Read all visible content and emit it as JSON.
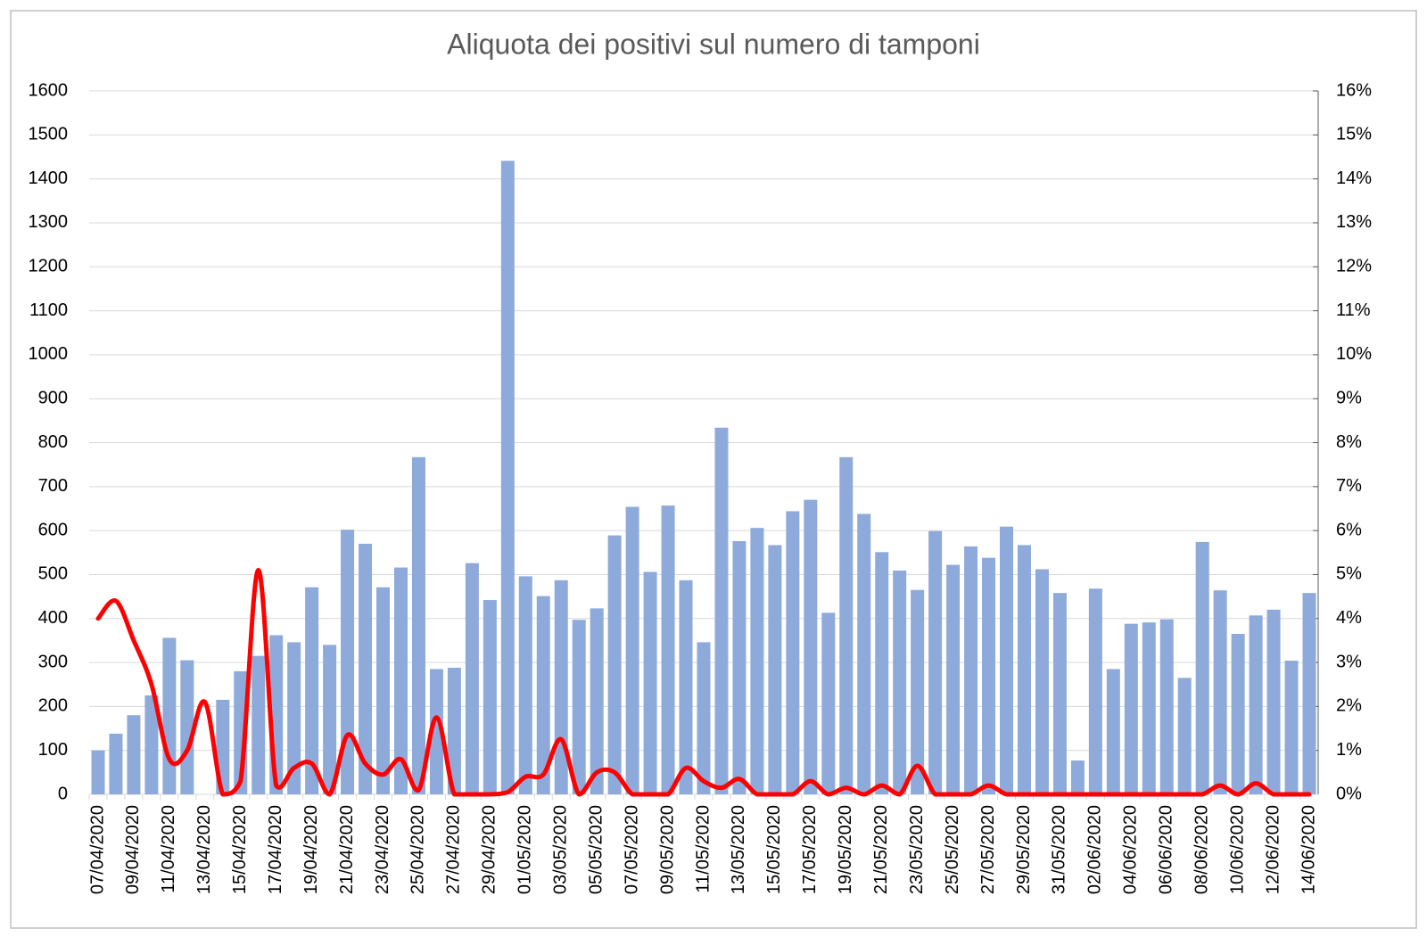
{
  "chart_data": {
    "type": "bar",
    "title": "Aliquota dei positivi sul numero di tamponi",
    "categories": [
      "07/04/2020",
      null,
      "09/04/2020",
      null,
      "11/04/2020",
      null,
      "13/04/2020",
      null,
      "15/04/2020",
      null,
      "17/04/2020",
      null,
      "19/04/2020",
      null,
      "21/04/2020",
      null,
      "23/04/2020",
      null,
      "25/04/2020",
      null,
      "27/04/2020",
      null,
      "29/04/2020",
      null,
      "01/05/2020",
      null,
      "03/05/2020",
      null,
      "05/05/2020",
      null,
      "07/05/2020",
      null,
      "09/05/2020",
      null,
      "11/05/2020",
      null,
      "13/05/2020",
      null,
      "15/05/2020",
      null,
      "17/05/2020",
      null,
      "19/05/2020",
      null,
      "21/05/2020",
      null,
      "23/05/2020",
      null,
      "25/05/2020",
      null,
      "27/05/2020",
      null,
      "29/05/2020",
      null,
      "31/05/2020",
      null,
      "02/06/2020",
      null,
      "04/06/2020",
      null,
      "06/06/2020",
      null,
      "08/06/2020",
      null,
      "10/06/2020",
      null,
      "12/06/2020",
      null,
      "14/06/2020"
    ],
    "series": [
      {
        "type": "bar",
        "color": "#8eaadb",
        "values": [
          100,
          138,
          180,
          225,
          356,
          305,
          null,
          215,
          280,
          315,
          362,
          346,
          471,
          340,
          602,
          570,
          471,
          516,
          767,
          285,
          288,
          526,
          442,
          1441,
          496,
          451,
          487,
          397,
          423,
          589,
          654,
          506,
          657,
          487,
          346,
          834,
          576,
          606,
          567,
          644,
          670,
          413,
          767,
          638,
          551,
          509,
          465,
          599,
          522,
          564,
          538,
          609,
          567,
          512,
          458,
          77,
          468,
          285,
          388,
          391,
          398,
          265,
          574,
          464,
          365,
          407,
          420,
          304,
          458
        ]
      },
      {
        "type": "line",
        "axis": "y2",
        "color": "#ff0000",
        "values": [
          4.0,
          4.4,
          3.5,
          2.5,
          0.8,
          1.0,
          2.1,
          0,
          0.3,
          5.1,
          0.2,
          0.6,
          0.7,
          0,
          1.35,
          0.7,
          0.45,
          0.8,
          0.1,
          1.75,
          0,
          0,
          0,
          0.05,
          0.4,
          0.45,
          1.25,
          0,
          0.5,
          0.5,
          0,
          0,
          0,
          0.6,
          0.3,
          0.15,
          0.35,
          0,
          0,
          0,
          0.3,
          0,
          0.15,
          0,
          0.2,
          0,
          0.65,
          0,
          0,
          0,
          0.2,
          0,
          0,
          0,
          0,
          0,
          0,
          0,
          0,
          0,
          0,
          0,
          0,
          0.2,
          0,
          0.25,
          0,
          0,
          0
        ]
      }
    ],
    "ylim": [
      0,
      1600
    ],
    "yticks": [
      0,
      100,
      200,
      300,
      400,
      500,
      600,
      700,
      800,
      900,
      1000,
      1100,
      1200,
      1300,
      1400,
      1500,
      1600
    ],
    "y2lim": [
      0,
      16
    ],
    "y2ticks": [
      {
        "value": 0,
        "label": "0%"
      },
      {
        "value": 1,
        "label": "1%"
      },
      {
        "value": 2,
        "label": "2%"
      },
      {
        "value": 3,
        "label": "3%"
      },
      {
        "value": 4,
        "label": "4%"
      },
      {
        "value": 5,
        "label": "5%"
      },
      {
        "value": 6,
        "label": "6%"
      },
      {
        "value": 7,
        "label": "7%"
      },
      {
        "value": 8,
        "label": "8%"
      },
      {
        "value": 9,
        "label": "9%"
      },
      {
        "value": 10,
        "label": "10%"
      },
      {
        "value": 11,
        "label": "11%"
      },
      {
        "value": 12,
        "label": "12%"
      },
      {
        "value": 13,
        "label": "13%"
      },
      {
        "value": 14,
        "label": "14%"
      },
      {
        "value": 15,
        "label": "15%"
      },
      {
        "value": 16,
        "label": "16%"
      }
    ],
    "grid": true
  }
}
